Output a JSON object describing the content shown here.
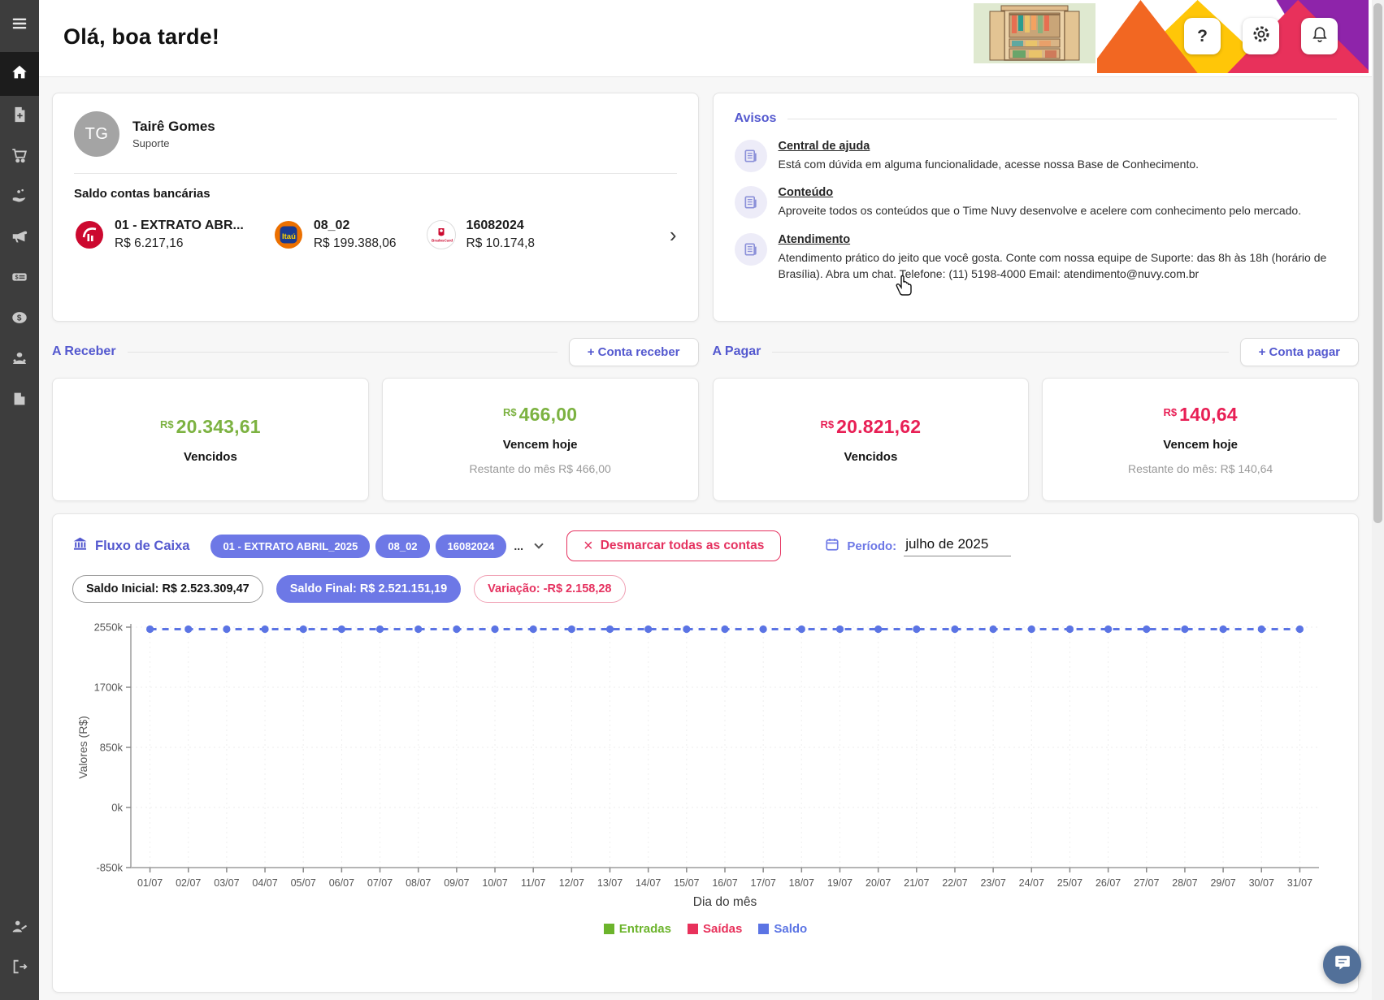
{
  "header": {
    "greeting": "Olá, boa tarde!",
    "help_button": "?"
  },
  "sidebar": {
    "icons": [
      "menu",
      "home",
      "invoice-add",
      "cart",
      "hand-coins",
      "megaphone",
      "bill",
      "coin",
      "people",
      "file",
      "user-edit",
      "logout"
    ],
    "active": "home"
  },
  "profile_card": {
    "avatar_initials": "TG",
    "name": "Tairê Gomes",
    "role": "Suporte",
    "balances_title": "Saldo contas bancárias",
    "accounts": [
      {
        "bank": "Bradesco",
        "logo_text": "",
        "name": "01 - EXTRATO ABR...",
        "balance": "R$ 6.217,16"
      },
      {
        "bank": "Itaú",
        "logo_text": "Itaú",
        "name": "08_02",
        "balance": "R$ 199.388,06"
      },
      {
        "bank": "BradesCard",
        "logo_text": "BradesCard",
        "name": "16082024",
        "balance": "R$ 10.174,8"
      }
    ]
  },
  "avisos": {
    "title": "Avisos",
    "items": [
      {
        "title": "Central de ajuda",
        "text": "Está com dúvida em alguma funcionalidade, acesse nossa Base de Conhecimento."
      },
      {
        "title": "Conteúdo",
        "text": "Aproveite todos os conteúdos que o Time Nuvy desenvolve e acelere com conhecimento pelo mercado."
      },
      {
        "title": "Atendimento",
        "text": "Atendimento prático do jeito que você gosta. Conte com nossa equipe de Suporte: das 8h às 18h (horário de Brasília). Abra um chat. Telefone: (11) 5198-4000 Email: atendimento@nuvy.com.br"
      }
    ]
  },
  "receivables": {
    "title": "A Receber",
    "add_button": "+ Conta receber",
    "cards": [
      {
        "currency": "R$",
        "amount": "20.343,61",
        "tone": "green",
        "label": "Vencidos",
        "note": ""
      },
      {
        "currency": "R$",
        "amount": "466,00",
        "tone": "green",
        "label": "Vencem hoje",
        "note": "Restante do mês R$ 466,00"
      }
    ]
  },
  "payables": {
    "title": "A Pagar",
    "add_button": "+ Conta pagar",
    "cards": [
      {
        "currency": "R$",
        "amount": "20.821,62",
        "tone": "red",
        "label": "Vencidos",
        "note": ""
      },
      {
        "currency": "R$",
        "amount": "140,64",
        "tone": "red",
        "label": "Vencem hoje",
        "note": "Restante do mês: R$ 140,64"
      }
    ]
  },
  "cashflow": {
    "title": "Fluxo de Caixa",
    "account_chips": [
      "01 - EXTRATO ABRIL_2025",
      "08_02",
      "16082024"
    ],
    "chips_overflow": "...",
    "deselect_button": "Desmarcar todas as contas",
    "period_label": "Período:",
    "period_value": "julho de 2025",
    "badges": [
      {
        "text": "Saldo Inicial: R$ 2.523.309,47",
        "style": "outline-dark"
      },
      {
        "text": "Saldo Final: R$ 2.521.151,19",
        "style": "filled-purple"
      },
      {
        "text": "Variação: -R$ 2.158,28",
        "style": "outline-red"
      }
    ]
  },
  "chart_data": {
    "type": "line",
    "title": "",
    "xlabel": "Dia do mês",
    "ylabel": "Valores (R$)",
    "x": [
      "01/07",
      "02/07",
      "03/07",
      "04/07",
      "05/07",
      "06/07",
      "07/07",
      "08/07",
      "09/07",
      "10/07",
      "11/07",
      "12/07",
      "13/07",
      "14/07",
      "15/07",
      "16/07",
      "17/07",
      "18/07",
      "19/07",
      "20/07",
      "21/07",
      "22/07",
      "23/07",
      "24/07",
      "25/07",
      "26/07",
      "27/07",
      "28/07",
      "29/07",
      "30/07",
      "31/07"
    ],
    "ylim": [
      -850000,
      2550000
    ],
    "yticks": [
      2550000,
      1700000,
      850000,
      0,
      -850000
    ],
    "ytick_labels": [
      "2550k",
      "1700k",
      "850k",
      "0k",
      "-850k"
    ],
    "grid": "dotted",
    "legend_position": "bottom",
    "series": [
      {
        "name": "Entradas",
        "color": "#6cb42c",
        "render": "bar",
        "values": [
          0,
          0,
          0,
          0,
          0,
          0,
          0,
          0,
          0,
          0,
          0,
          0,
          0,
          0,
          0,
          0,
          0,
          0,
          0,
          0,
          0,
          0,
          0,
          0,
          0,
          0,
          0,
          0,
          0,
          0,
          0
        ]
      },
      {
        "name": "Saídas",
        "color": "#e8315b",
        "render": "bar",
        "values": [
          0,
          0,
          0,
          0,
          0,
          0,
          0,
          0,
          0,
          0,
          0,
          0,
          0,
          0,
          0,
          0,
          0,
          0,
          0,
          0,
          0,
          0,
          0,
          0,
          0,
          0,
          0,
          0,
          0,
          0,
          0
        ]
      },
      {
        "name": "Saldo",
        "color": "#5b74e4",
        "render": "dashed-line-markers",
        "values": [
          2521151.19,
          2521151.19,
          2521151.19,
          2521151.19,
          2521151.19,
          2521151.19,
          2521151.19,
          2521151.19,
          2521151.19,
          2521151.19,
          2521151.19,
          2521151.19,
          2521151.19,
          2521151.19,
          2521151.19,
          2521151.19,
          2521151.19,
          2521151.19,
          2521151.19,
          2521151.19,
          2521151.19,
          2521151.19,
          2521151.19,
          2521151.19,
          2521151.19,
          2521151.19,
          2521151.19,
          2521151.19,
          2521151.19,
          2521151.19,
          2521151.19
        ]
      }
    ]
  },
  "colors": {
    "accent_purple": "#5459cf",
    "chip_purple": "#6d78e6",
    "positive_green": "#7cb241",
    "negative_red": "#e81f55",
    "sidebar_bg": "#3d3d3d"
  }
}
